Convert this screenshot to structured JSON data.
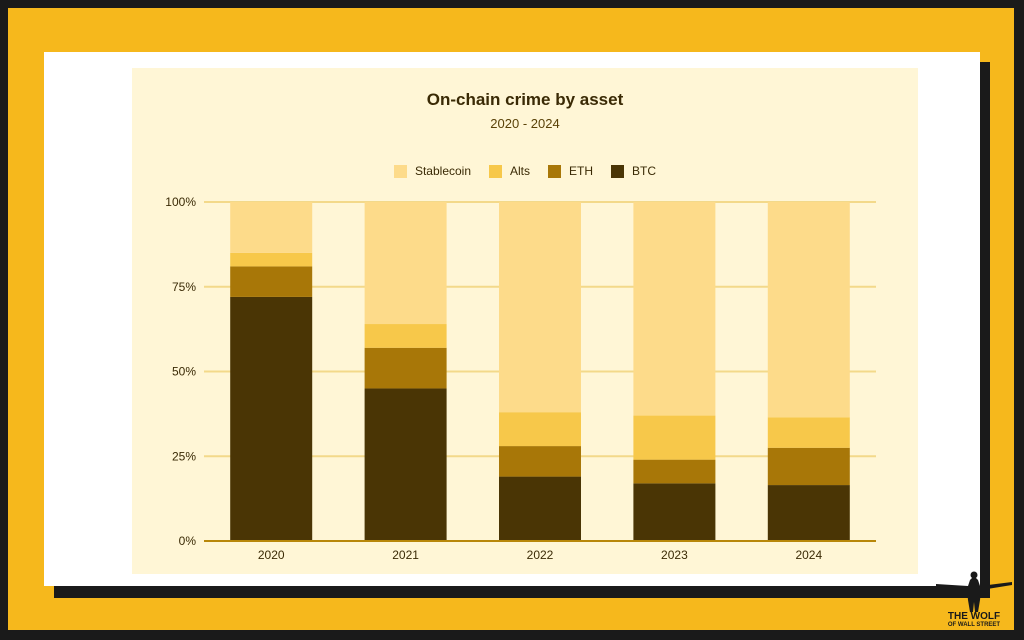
{
  "colors": {
    "BTC": "#4a3505",
    "ETH": "#a87708",
    "Alts": "#f7c84a",
    "Stablecoin": "#fddb8a",
    "accent": "#f6b81c"
  },
  "chart_data": {
    "type": "bar",
    "stacked": true,
    "title": "On-chain crime by asset",
    "subtitle": "2020 - 2024",
    "categories": [
      "2020",
      "2021",
      "2022",
      "2023",
      "2024"
    ],
    "series": [
      {
        "name": "BTC",
        "values": [
          72,
          45,
          19,
          17,
          16.5
        ]
      },
      {
        "name": "ETH",
        "values": [
          9,
          12,
          9,
          7,
          11
        ]
      },
      {
        "name": "Alts",
        "values": [
          4,
          7,
          10,
          13,
          9
        ]
      },
      {
        "name": "Stablecoin",
        "values": [
          15,
          36,
          62,
          63,
          63.5
        ]
      }
    ],
    "legend_order": [
      "Stablecoin",
      "Alts",
      "ETH",
      "BTC"
    ],
    "yticks": [
      "0%",
      "25%",
      "50%",
      "75%",
      "100%"
    ],
    "ylim": [
      0,
      100
    ],
    "legend_position": "top",
    "grid": true
  },
  "logo": {
    "line1": "THE WOLF",
    "line2": "OF WALL STREET"
  }
}
